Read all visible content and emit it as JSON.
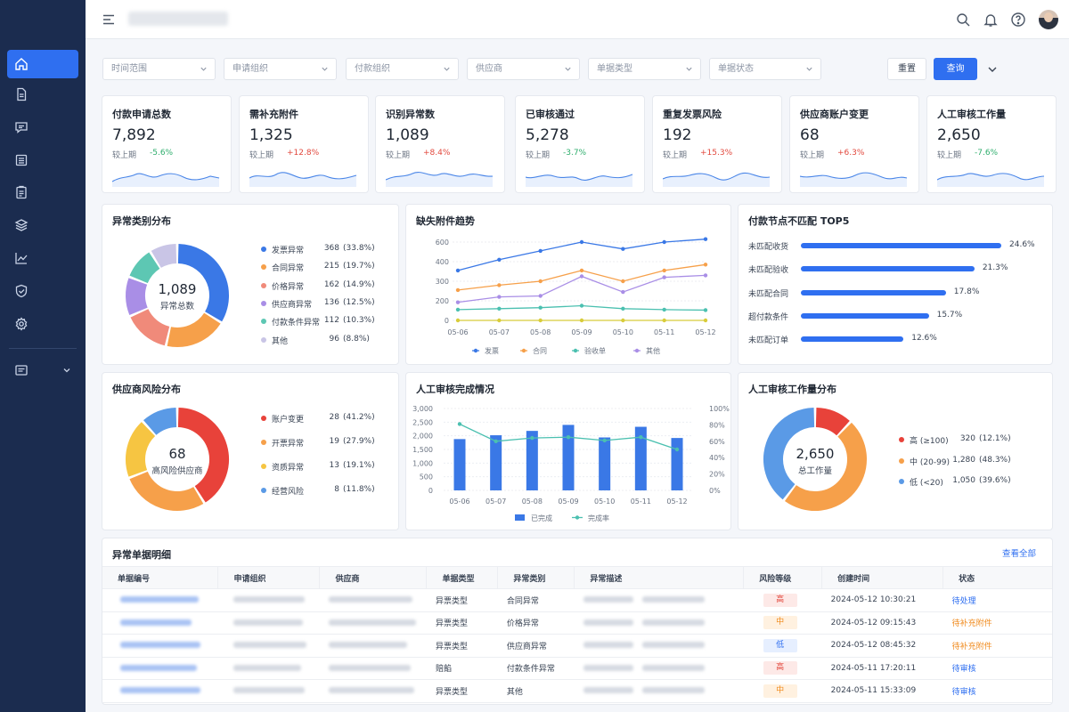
{
  "filters": [
    {
      "label": "时间范围"
    },
    {
      "label": "申请组织"
    },
    {
      "label": "付款组织"
    },
    {
      "label": "供应商"
    },
    {
      "label": "单据类型"
    },
    {
      "label": "单据状态"
    }
  ],
  "buttons": {
    "reset": "重置",
    "query": "查询"
  },
  "kpis": [
    {
      "title": "付款申请总数",
      "value": "7,892",
      "compare": "较上期",
      "delta": "-5.6%",
      "dir": "down"
    },
    {
      "title": "需补充附件",
      "value": "1,325",
      "compare": "较上期",
      "delta": "+12.8%",
      "dir": "up"
    },
    {
      "title": "识别异常数",
      "value": "1,089",
      "compare": "较上期",
      "delta": "+8.4%",
      "dir": "up"
    },
    {
      "title": "已审核通过",
      "value": "5,278",
      "compare": "较上期",
      "delta": "-3.7%",
      "dir": "down"
    },
    {
      "title": "重复发票风险",
      "value": "192",
      "compare": "较上期",
      "delta": "+15.3%",
      "dir": "up"
    },
    {
      "title": "供应商账户变更",
      "value": "68",
      "compare": "较上期",
      "delta": "+6.3%",
      "dir": "up"
    },
    {
      "title": "人工审核工作量",
      "value": "2,650",
      "compare": "较上期",
      "delta": "-7.6%",
      "dir": "down"
    }
  ],
  "colors": {
    "accent": "#2f6ff0",
    "up": "#e2483d",
    "down": "#2fae6d"
  },
  "anomaly_dist": {
    "title": "异常类别分布",
    "center_value": "1,089",
    "center_label": "异常总数",
    "items": [
      {
        "name": "发票异常",
        "value": "368",
        "pct": "(33.8%)",
        "raw": 368,
        "color": "#3a78e6"
      },
      {
        "name": "合同异常",
        "value": "215",
        "pct": "(19.7%)",
        "raw": 215,
        "color": "#f6a04a"
      },
      {
        "name": "价格异常",
        "value": "162",
        "pct": "(14.9%)",
        "raw": 162,
        "color": "#f08a7a"
      },
      {
        "name": "供应商异常",
        "value": "136",
        "pct": "(12.5%)",
        "raw": 136,
        "color": "#a98ee6"
      },
      {
        "name": "付款条件异常",
        "value": "112",
        "pct": "(10.3%)",
        "raw": 112,
        "color": "#5dc7b3"
      },
      {
        "name": "其他",
        "value": "96",
        "pct": "(8.8%)",
        "raw": 96,
        "color": "#c9c5e6"
      }
    ]
  },
  "missing_trend": {
    "title": "缺失附件趋势",
    "chart_data": {
      "type": "line",
      "categories": [
        "05-06",
        "05-07",
        "05-08",
        "05-09",
        "05-10",
        "05-11",
        "05-12"
      ],
      "ylim": [
        0,
        600
      ],
      "yticks": [
        "600",
        "400",
        "300",
        "200",
        "0"
      ],
      "series": [
        {
          "name": "发票",
          "values": [
            355,
            420,
            510,
            600,
            530,
            600,
            630
          ],
          "color": "#3a78e6"
        },
        {
          "name": "合同",
          "values": [
            255,
            280,
            300,
            355,
            300,
            355,
            385
          ],
          "color": "#f6a04a"
        },
        {
          "name": "验收单",
          "values": [
            110,
            120,
            130,
            150,
            120,
            110,
            105
          ],
          "color": "#4bc0b0"
        },
        {
          "name": "其他",
          "values": [
            185,
            220,
            225,
            325,
            245,
            320,
            330
          ],
          "color": "#a98ee6"
        },
        {
          "name": "",
          "values": [
            0,
            0,
            0,
            0,
            0,
            0,
            0
          ],
          "color": "#d8cc3a"
        }
      ]
    }
  },
  "top5": {
    "title": "付款节点不匹配 TOP5",
    "chart_data": {
      "type": "bar",
      "categories": [
        "未匹配收货",
        "未匹配验收",
        "未匹配合同",
        "超付款条件",
        "未匹配订单"
      ],
      "values": [
        24.6,
        21.3,
        17.8,
        15.7,
        12.6
      ],
      "labels": [
        "24.6%",
        "21.3%",
        "17.8%",
        "15.7%",
        "12.6%"
      ]
    }
  },
  "supplier_risk": {
    "title": "供应商风险分布",
    "center_value": "68",
    "center_label": "高风险供应商",
    "items": [
      {
        "name": "账户变更",
        "value": "28",
        "pct": "(41.2%)",
        "raw": 28,
        "color": "#e8423a"
      },
      {
        "name": "开票异常",
        "value": "19",
        "pct": "(27.9%)",
        "raw": 19,
        "color": "#f6a04a"
      },
      {
        "name": "资质异常",
        "value": "13",
        "pct": "(19.1%)",
        "raw": 13,
        "color": "#f6c542"
      },
      {
        "name": "经营风险",
        "value": "8",
        "pct": "(11.8%)",
        "raw": 8,
        "color": "#5a9ae6"
      }
    ]
  },
  "review_done": {
    "title": "人工审核完成情况",
    "chart_data": {
      "type": "bar",
      "categories": [
        "05-06",
        "05-07",
        "05-08",
        "05-09",
        "05-10",
        "05-11",
        "05-12"
      ],
      "ylim": [
        0,
        3000
      ],
      "y2lim": [
        0,
        100
      ],
      "yticks": [
        "3,000",
        "2,500",
        "2,000",
        "1,500",
        "1,000",
        "500",
        "0"
      ],
      "y2ticks": [
        "100%",
        "80%",
        "60%",
        "40%",
        "20%",
        "0%"
      ],
      "series": [
        {
          "name": "已完成",
          "values": [
            1880,
            2020,
            2180,
            2400,
            1940,
            2330,
            1920
          ],
          "color": "#3a78e6"
        },
        {
          "name": "完成率",
          "values": [
            81,
            60,
            64,
            65,
            61,
            65,
            50
          ],
          "color": "#4bc0b0"
        }
      ]
    }
  },
  "workload": {
    "title": "人工审核工作量分布",
    "center_value": "2,650",
    "center_label": "总工作量",
    "items": [
      {
        "name": "高 (≥100)",
        "value": "320",
        "pct": "(12.1%)",
        "raw": 320,
        "color": "#e8423a"
      },
      {
        "name": "中 (20-99)",
        "value": "1,280",
        "pct": "(48.3%)",
        "raw": 1280,
        "color": "#f6a04a"
      },
      {
        "name": "低 (<20)",
        "value": "1,050",
        "pct": "(39.6%)",
        "raw": 1050,
        "color": "#5a9ae6"
      }
    ]
  },
  "table": {
    "title": "异常单据明细",
    "view_all": "查看全部",
    "headers": [
      "单据编号",
      "申请组织",
      "供应商",
      "单据类型",
      "异常类别",
      "异常描述",
      "风险等级",
      "创建时间",
      "状态"
    ],
    "rows": [
      {
        "doc_type": "异票类型",
        "category": "合同异常",
        "risk": "高",
        "risk_level": "high",
        "time": "2024-05-12 10:30:21",
        "status": "待处理",
        "status_color": "blue"
      },
      {
        "doc_type": "异票类型",
        "category": "价格异常",
        "risk": "中",
        "risk_level": "mid",
        "time": "2024-05-12 09:15:43",
        "status": "待补充附件",
        "status_color": "orange"
      },
      {
        "doc_type": "异票类型",
        "category": "供应商异常",
        "risk": "低",
        "risk_level": "low",
        "time": "2024-05-12 08:45:32",
        "status": "待补充附件",
        "status_color": "orange"
      },
      {
        "doc_type": "賠餡",
        "category": "付款条件异常",
        "risk": "高",
        "risk_level": "high",
        "time": "2024-05-11 17:20:11",
        "status": "待审核",
        "status_color": "blue"
      },
      {
        "doc_type": "异票类型",
        "category": "其他",
        "risk": "中",
        "risk_level": "mid",
        "time": "2024-05-11 15:33:09",
        "status": "待审核",
        "status_color": "blue"
      }
    ]
  }
}
